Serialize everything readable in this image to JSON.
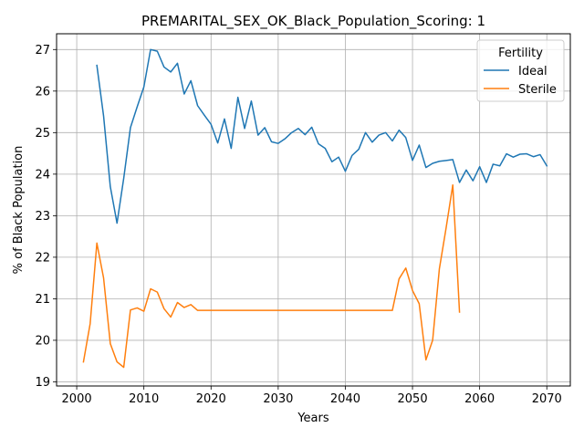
{
  "chart_data": {
    "type": "line",
    "title": "PREMARITAL_SEX_OK_Black_Population_Scoring: 1",
    "xlabel": "Years",
    "ylabel": "% of Black Population",
    "xlim": [
      1997,
      2073.5
    ],
    "ylim": [
      18.9,
      27.38
    ],
    "xticks": [
      2000,
      2010,
      2020,
      2030,
      2040,
      2050,
      2060,
      2070
    ],
    "yticks": [
      19,
      20,
      21,
      22,
      23,
      24,
      25,
      26,
      27
    ],
    "grid": true,
    "legend": {
      "title": "Fertility",
      "placement": "top-right"
    },
    "series": [
      {
        "name": "Ideal",
        "color": "#1f77b4",
        "x": [
          2003,
          2004,
          2005,
          2006,
          2007,
          2008,
          2009,
          2010,
          2011,
          2012,
          2013,
          2014,
          2015,
          2016,
          2017,
          2018,
          2019,
          2020,
          2021,
          2022,
          2023,
          2024,
          2025,
          2026,
          2027,
          2028,
          2029,
          2030,
          2031,
          2032,
          2033,
          2034,
          2035,
          2036,
          2037,
          2038,
          2039,
          2040,
          2041,
          2042,
          2043,
          2044,
          2045,
          2046,
          2047,
          2048,
          2049,
          2050,
          2051,
          2052,
          2053,
          2054,
          2055,
          2056,
          2057,
          2058,
          2059,
          2060,
          2061,
          2062,
          2063,
          2064,
          2065,
          2066,
          2067,
          2068,
          2069,
          2070
        ],
        "values": [
          26.62,
          25.4,
          23.7,
          22.82,
          23.9,
          25.12,
          25.62,
          26.1,
          27.0,
          26.96,
          26.58,
          26.46,
          26.67,
          25.93,
          26.25,
          25.65,
          25.42,
          25.2,
          24.75,
          25.33,
          24.62,
          25.85,
          25.1,
          25.76,
          24.94,
          25.12,
          24.78,
          24.74,
          24.85,
          25.0,
          25.1,
          24.95,
          25.13,
          24.73,
          24.62,
          24.3,
          24.41,
          24.07,
          24.45,
          24.6,
          25.0,
          24.77,
          24.94,
          25.0,
          24.8,
          25.06,
          24.88,
          24.33,
          24.7,
          24.16,
          24.26,
          24.31,
          24.33,
          24.35,
          23.8,
          24.1,
          23.84,
          24.18,
          23.8,
          24.24,
          24.2,
          24.49,
          24.41,
          24.48,
          24.49,
          24.42,
          24.47,
          24.2
        ]
      },
      {
        "name": "Sterile",
        "color": "#ff7f0e",
        "x": [
          2001,
          2002,
          2003,
          2004,
          2005,
          2006,
          2007,
          2008,
          2009,
          2010,
          2011,
          2012,
          2013,
          2014,
          2015,
          2016,
          2017,
          2018,
          2019,
          2020,
          2025,
          2030,
          2035,
          2040,
          2045,
          2047,
          2048,
          2049,
          2050,
          2051,
          2052,
          2053,
          2054,
          2055,
          2056,
          2057
        ],
        "values": [
          19.48,
          20.4,
          22.34,
          21.5,
          19.92,
          19.48,
          19.35,
          20.73,
          20.78,
          20.7,
          21.24,
          21.16,
          20.76,
          20.56,
          20.91,
          20.79,
          20.86,
          20.72,
          20.72,
          20.72,
          20.72,
          20.72,
          20.72,
          20.72,
          20.72,
          20.72,
          21.48,
          21.74,
          21.2,
          20.88,
          19.53,
          20.0,
          21.72,
          22.7,
          23.74,
          20.68
        ]
      }
    ]
  }
}
